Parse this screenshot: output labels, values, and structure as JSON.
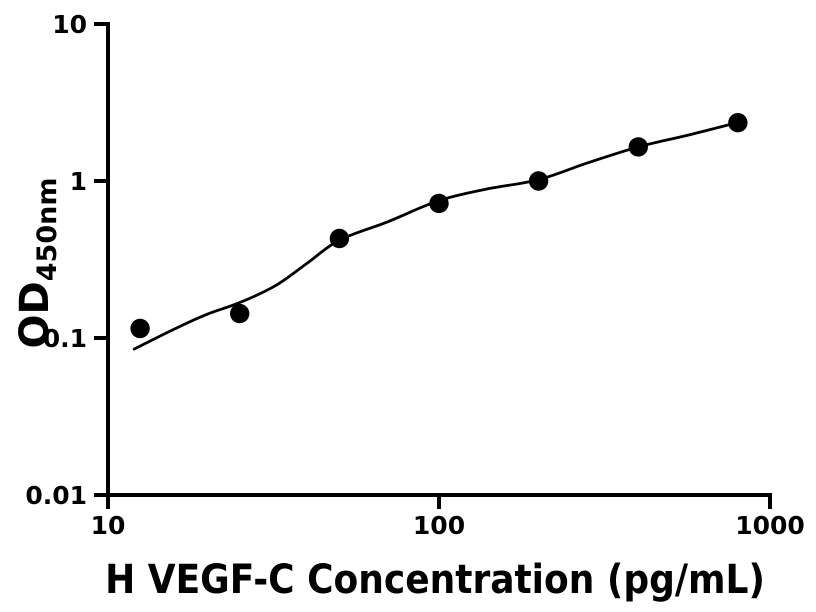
{
  "figure": {
    "background_color": "#ffffff",
    "foreground_color": "#000000"
  },
  "chart_data": {
    "type": "scatter",
    "title": "",
    "xlabel": "H VEGF-C Concentration (pg/mL)",
    "ylabel_main": "OD",
    "ylabel_sub": "450nm",
    "x_scale": "log",
    "y_scale": "log",
    "xlim": [
      10,
      1000
    ],
    "ylim": [
      0.01,
      10
    ],
    "grid": false,
    "legend": false,
    "x_ticks": [
      10,
      100,
      1000
    ],
    "x_tick_labels": [
      "10",
      "100",
      "1000"
    ],
    "y_ticks": [
      0.01,
      0.1,
      1,
      10
    ],
    "y_tick_labels": [
      "0.01",
      "0.1",
      "1",
      "10"
    ],
    "series": [
      {
        "name": "standard-points",
        "type": "scatter",
        "marker": "filled-circle",
        "color": "#000000",
        "x": [
          12.5,
          25,
          50,
          100,
          200,
          400,
          800
        ],
        "y": [
          0.115,
          0.143,
          0.43,
          0.72,
          1.0,
          1.65,
          2.35
        ]
      },
      {
        "name": "fitted-curve",
        "type": "line",
        "color": "#000000",
        "points": [
          [
            12,
            0.085
          ],
          [
            16,
            0.115
          ],
          [
            20,
            0.142
          ],
          [
            25,
            0.168
          ],
          [
            32,
            0.215
          ],
          [
            40,
            0.3
          ],
          [
            50,
            0.42
          ],
          [
            70,
            0.55
          ],
          [
            100,
            0.75
          ],
          [
            140,
            0.89
          ],
          [
            200,
            1.02
          ],
          [
            280,
            1.3
          ],
          [
            400,
            1.65
          ],
          [
            560,
            1.95
          ],
          [
            800,
            2.36
          ]
        ]
      }
    ]
  }
}
